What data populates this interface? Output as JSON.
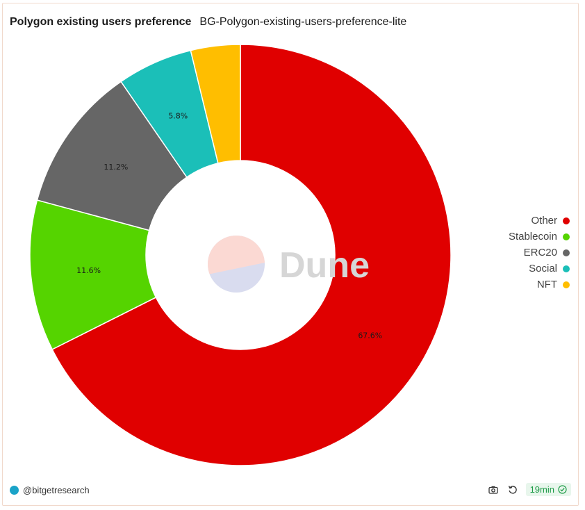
{
  "header": {
    "title": "Polygon existing users preference",
    "subtitle": "BG-Polygon-existing-users-preference-lite"
  },
  "watermark": {
    "text": "Dune"
  },
  "chart_data": {
    "type": "pie",
    "title": "Polygon existing users preference",
    "donut": true,
    "legend_position": "right",
    "categories": [
      "Other",
      "Stablecoin",
      "ERC20",
      "Social",
      "NFT"
    ],
    "values": [
      67.6,
      11.6,
      11.2,
      5.8,
      3.8
    ],
    "labels": [
      "67.6%",
      "11.6%",
      "11.2%",
      "5.8%",
      ""
    ],
    "colors": [
      "#e00000",
      "#55d400",
      "#666666",
      "#1bbfb8",
      "#ffbe00"
    ]
  },
  "footer": {
    "author": "@bitgetresearch",
    "refresh_label": "19min",
    "camera_icon": "camera-icon",
    "refresh_icon": "refresh-icon"
  }
}
